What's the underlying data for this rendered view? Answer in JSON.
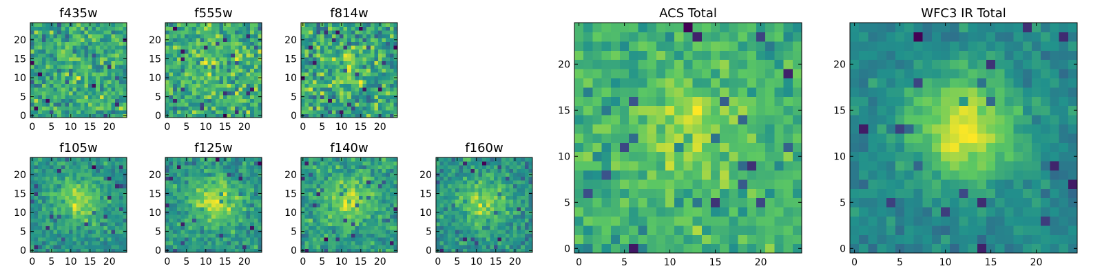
{
  "colormap": [
    "#440154",
    "#3b528b",
    "#21918c",
    "#5ec962",
    "#fde725"
  ],
  "chart_data": [
    {
      "type": "heatmap",
      "title": "f435w",
      "grid": [
        25,
        25
      ],
      "xticks": [
        0,
        5,
        10,
        15,
        20
      ],
      "yticks": [
        0,
        5,
        10,
        15,
        20
      ],
      "xlim": [
        -0.5,
        24.5
      ],
      "ylim": [
        -0.5,
        24.5
      ],
      "seed": 11,
      "blob": 0.1,
      "noise": 1.0
    },
    {
      "type": "heatmap",
      "title": "f555w",
      "grid": [
        25,
        25
      ],
      "xticks": [
        0,
        5,
        10,
        15,
        20
      ],
      "yticks": [
        0,
        5,
        10,
        15,
        20
      ],
      "xlim": [
        -0.5,
        24.5
      ],
      "ylim": [
        -0.5,
        24.5
      ],
      "seed": 23,
      "blob": 0.15,
      "noise": 1.0
    },
    {
      "type": "heatmap",
      "title": "f814w",
      "grid": [
        25,
        25
      ],
      "xticks": [
        0,
        5,
        10,
        15,
        20
      ],
      "yticks": [
        0,
        5,
        10,
        15,
        20
      ],
      "xlim": [
        -0.5,
        24.5
      ],
      "ylim": [
        -0.5,
        24.5
      ],
      "seed": 37,
      "blob": 0.2,
      "noise": 1.0
    },
    {
      "type": "heatmap",
      "title": "f105w",
      "grid": [
        25,
        25
      ],
      "xticks": [
        0,
        5,
        10,
        15,
        20
      ],
      "yticks": [
        0,
        5,
        10,
        15,
        20
      ],
      "xlim": [
        -0.5,
        24.5
      ],
      "ylim": [
        -0.5,
        24.5
      ],
      "seed": 41,
      "blob": 0.55,
      "noise": 0.8
    },
    {
      "type": "heatmap",
      "title": "f125w",
      "grid": [
        25,
        25
      ],
      "xticks": [
        0,
        5,
        10,
        15,
        20
      ],
      "yticks": [
        0,
        5,
        10,
        15,
        20
      ],
      "xlim": [
        -0.5,
        24.5
      ],
      "ylim": [
        -0.5,
        24.5
      ],
      "seed": 53,
      "blob": 0.55,
      "noise": 0.8
    },
    {
      "type": "heatmap",
      "title": "f140w",
      "grid": [
        25,
        25
      ],
      "xticks": [
        0,
        5,
        10,
        15,
        20
      ],
      "yticks": [
        0,
        5,
        10,
        15,
        20
      ],
      "xlim": [
        -0.5,
        24.5
      ],
      "ylim": [
        -0.5,
        24.5
      ],
      "seed": 67,
      "blob": 0.5,
      "noise": 0.85
    },
    {
      "type": "heatmap",
      "title": "f160w",
      "grid": [
        25,
        25
      ],
      "xticks": [
        0,
        5,
        10,
        15,
        20
      ],
      "yticks": [
        0,
        5,
        10,
        15,
        20
      ],
      "xlim": [
        -0.5,
        24.5
      ],
      "ylim": [
        -0.5,
        24.5
      ],
      "seed": 79,
      "blob": 0.5,
      "noise": 0.9
    },
    {
      "type": "heatmap",
      "title": "ACS Total",
      "grid": [
        25,
        25
      ],
      "xticks": [
        0,
        5,
        10,
        15,
        20
      ],
      "yticks": [
        0,
        5,
        10,
        15,
        20
      ],
      "xlim": [
        -0.5,
        24.5
      ],
      "ylim": [
        -0.5,
        24.5
      ],
      "seed": 97,
      "blob": 0.3,
      "noise": 0.75
    },
    {
      "type": "heatmap",
      "title": "WFC3 IR Total",
      "grid": [
        25,
        25
      ],
      "xticks": [
        0,
        5,
        10,
        15,
        20
      ],
      "yticks": [
        0,
        5,
        10,
        15,
        20
      ],
      "xlim": [
        -0.5,
        24.5
      ],
      "ylim": [
        -0.5,
        24.5
      ],
      "seed": 131,
      "blob": 0.8,
      "noise": 0.55
    }
  ]
}
